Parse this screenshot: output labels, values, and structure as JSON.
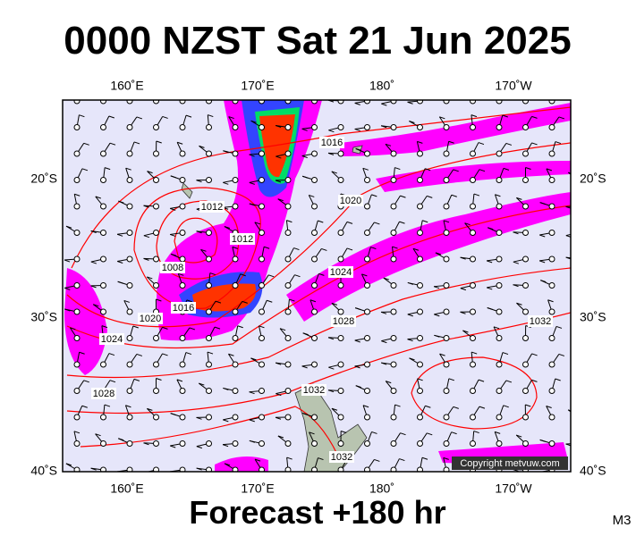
{
  "header": {
    "title": "0000 NZST Sat 21 Jun 2025"
  },
  "footer": {
    "forecast": "Forecast +180 hr",
    "model": "M3"
  },
  "map": {
    "copyright": "Copyright metvuw.com",
    "axes": {
      "top": [
        "160˚E",
        "170˚E",
        "180˚",
        "170˚W"
      ],
      "bottom": [
        "160˚E",
        "170˚E",
        "180˚",
        "170˚W"
      ],
      "left": [
        "20˚S",
        "30˚S",
        "40˚S"
      ],
      "right": [
        "20˚S",
        "30˚S",
        "40˚S"
      ]
    },
    "isobar_labels": [
      "1016",
      "1012",
      "1020",
      "1012",
      "1008",
      "1024",
      "1016",
      "1020",
      "1028",
      "1032",
      "1024",
      "1028",
      "1032",
      "1032"
    ]
  }
}
